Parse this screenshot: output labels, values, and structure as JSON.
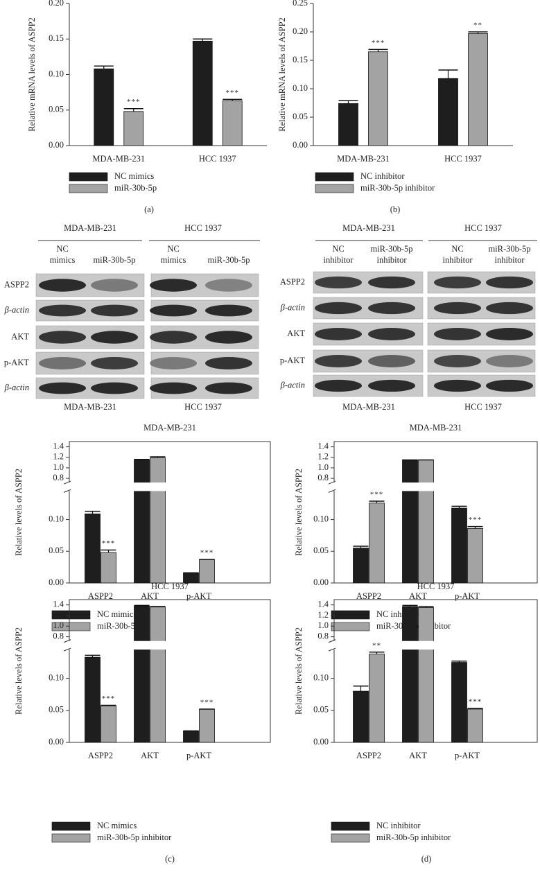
{
  "panel_labels": [
    "(a)",
    "(b)",
    "(c)",
    "(d)"
  ],
  "chart_data": [
    {
      "type": "bar",
      "y_label": "Relative mRNA levels of ASPP2",
      "categories": [
        "MDA-MB-231",
        "HCC 1937"
      ],
      "series": [
        {
          "name": "NC mimics",
          "color": "#1e1e1e",
          "values": [
            0.108,
            0.147
          ],
          "errors": [
            0.004,
            0.003
          ]
        },
        {
          "name": "miR-30b-5p",
          "color": "#a3a3a3",
          "values": [
            0.048,
            0.063
          ],
          "errors": [
            0.004,
            0.002
          ],
          "annotations": [
            "***",
            "***"
          ]
        }
      ],
      "ylim": [
        0,
        0.2
      ],
      "yticks": [
        {
          "value": 0,
          "label": "0.00"
        },
        0.05,
        {
          "value": 0.1,
          "label": "0.10"
        },
        0.15,
        {
          "value": 0.2,
          "label": "0.20"
        }
      ]
    },
    {
      "type": "bar",
      "y_label": "Relative mRNA levels of ASPP2",
      "categories": [
        "MDA-MB-231",
        "HCC 1937"
      ],
      "series": [
        {
          "name": "NC inhibitor",
          "color": "#1e1e1e",
          "values": [
            0.074,
            0.118
          ],
          "errors": [
            0.005,
            0.015
          ]
        },
        {
          "name": "miR-30b-5p inhibitor",
          "color": "#a3a3a3",
          "values": [
            0.165,
            0.197
          ],
          "errors": [
            0.004,
            0.003
          ],
          "annotations": [
            "***",
            "**"
          ]
        }
      ],
      "ylim": [
        0,
        0.25
      ],
      "yticks": [
        {
          "value": 0,
          "label": "0.00"
        },
        0.05,
        {
          "value": 0.1,
          "label": "0.10"
        },
        0.15,
        {
          "value": 0.2,
          "label": "0.20"
        },
        0.25
      ]
    },
    {
      "type": "bar",
      "title": "MDA-MB-231",
      "y_label": "Relative levels of ASPP2",
      "categories": [
        "ASPP2",
        "AKT",
        "p-AKT"
      ],
      "series": [
        {
          "name": "NC mimics",
          "color": "#1e1e1e",
          "values": [
            0.109,
            1.15,
            0.016
          ],
          "errors": [
            0.004,
            0.01,
            0
          ]
        },
        {
          "name": "miR-30b-5p",
          "color": "#a3a3a3",
          "values": [
            0.048,
            1.19,
            0.037
          ],
          "errors": [
            0.004,
            0.02,
            0
          ],
          "annotations": [
            "***",
            null,
            "***"
          ]
        }
      ],
      "ylim": [
        0,
        1.5
      ],
      "ybreak": [
        0.145,
        0.72
      ],
      "yticks": [
        {
          "value": 0,
          "label": "0.00"
        },
        0.05,
        {
          "value": 0.1,
          "label": "0.10"
        },
        0.8,
        {
          "value": 1,
          "label": "1.0"
        },
        1.2,
        1.4
      ]
    },
    {
      "type": "bar",
      "title": "MDA-MB-231",
      "y_label": "Relative levels of ASPP2",
      "categories": [
        "ASPP2",
        "AKT",
        "p-AKT"
      ],
      "series": [
        {
          "name": "NC inhibitor",
          "color": "#1e1e1e",
          "values": [
            0.055,
            1.15,
            0.118
          ],
          "errors": [
            0.003,
            0,
            0.003
          ]
        },
        {
          "name": "miR-30b-5p inhibitor",
          "color": "#a3a3a3",
          "values": [
            0.126,
            1.15,
            0.086
          ],
          "errors": [
            0.003,
            0,
            0.003
          ],
          "annotations": [
            "***",
            null,
            "***"
          ]
        }
      ],
      "ylim": [
        0,
        1.5
      ],
      "ybreak": [
        0.145,
        0.72
      ],
      "yticks": [
        {
          "value": 0,
          "label": "0.00"
        },
        0.05,
        {
          "value": 0.1,
          "label": "0.10"
        },
        0.8,
        {
          "value": 1,
          "label": "1.0"
        },
        1.2,
        1.4
      ]
    },
    {
      "type": "bar",
      "title": "HCC 1937",
      "y_label": "Relative levels of ASPP2",
      "categories": [
        "ASPP2",
        "AKT",
        "p-AKT"
      ],
      "series": [
        {
          "name": "NC mimics",
          "color": "#1e1e1e",
          "values": [
            0.133,
            1.38,
            0.018
          ],
          "errors": [
            0.003,
            0.01,
            0
          ]
        },
        {
          "name": "miR-30b-5p inhibitor",
          "color": "#a3a3a3",
          "values": [
            0.057,
            1.36,
            0.052
          ],
          "errors": [
            0.001,
            0.01,
            0
          ],
          "annotations": [
            "***",
            null,
            "***"
          ]
        }
      ],
      "ylim": [
        0,
        1.5
      ],
      "ybreak": [
        0.145,
        0.72
      ],
      "yticks": [
        {
          "value": 0,
          "label": "0.00"
        },
        0.05,
        {
          "value": 0.1,
          "label": "0.10"
        },
        0.8,
        {
          "value": 1,
          "label": "1.0"
        },
        1.2,
        1.4
      ]
    },
    {
      "type": "bar",
      "title": "HCC 1937",
      "y_label": "Relative levels of ASPP2",
      "categories": [
        "ASPP2",
        "AKT",
        "p-AKT"
      ],
      "series": [
        {
          "name": "NC inhibitor",
          "color": "#1e1e1e",
          "values": [
            0.08,
            1.37,
            0.125
          ],
          "errors": [
            0.008,
            0.02,
            0.002
          ]
        },
        {
          "name": "miR-30b-5p inhibitor",
          "color": "#a3a3a3",
          "values": [
            0.138,
            1.35,
            0.052
          ],
          "errors": [
            0.003,
            0.02,
            0.001
          ],
          "annotations": [
            "**",
            null,
            "***"
          ]
        }
      ],
      "ylim": [
        0,
        1.5
      ],
      "ybreak": [
        0.145,
        0.72
      ],
      "yticks": [
        {
          "value": 0,
          "label": "0.00"
        },
        0.05,
        {
          "value": 0.1,
          "label": "0.10"
        },
        0.8,
        {
          "value": 1,
          "label": "1.0"
        },
        1.2,
        1.4
      ]
    }
  ],
  "blots": [
    {
      "groups": [
        "MDA-MB-231",
        "HCC 1937"
      ],
      "columns": [
        [
          "NC",
          "mimics"
        ],
        [
          "miR-30b-5p"
        ],
        [
          "NC",
          "mimics"
        ],
        [
          "miR-30b-5p"
        ]
      ],
      "rows": [
        "ASPP2",
        "β-actin",
        "AKT",
        "p-AKT",
        "β-actin"
      ],
      "bottom_labels": [
        "MDA-MB-231",
        "HCC 1937"
      ]
    },
    {
      "groups": [
        "MDA-MB-231",
        "HCC 1937"
      ],
      "columns": [
        [
          "NC",
          "inhibitor"
        ],
        [
          "miR-30b-5p",
          "inhibitor"
        ],
        [
          "NC",
          "inhibitor"
        ],
        [
          "miR-30b-5p",
          "inhibitor"
        ]
      ],
      "rows": [
        "ASPP2",
        "β-actin",
        "AKT",
        "p-AKT",
        "β-actin"
      ],
      "bottom_labels": [
        "MDA-MB-231",
        "HCC 1937"
      ]
    }
  ]
}
